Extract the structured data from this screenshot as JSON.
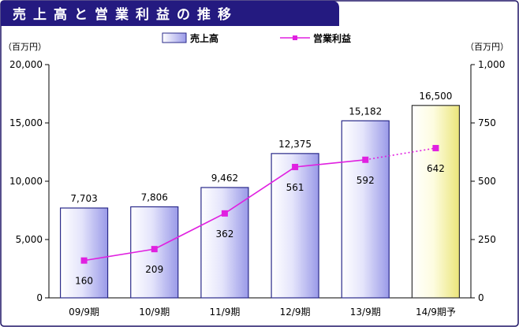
{
  "chart_data": {
    "type": "bar",
    "title": "売上高と営業利益の推移",
    "categories": [
      "09/9期",
      "10/9期",
      "11/9期",
      "12/9期",
      "13/9期",
      "14/9期予"
    ],
    "series": [
      {
        "name": "売上高",
        "type": "bar",
        "axis": "left",
        "values": [
          7703,
          7806,
          9462,
          12375,
          15182,
          16500
        ],
        "labels": [
          "7,703",
          "7,806",
          "9,462",
          "12,375",
          "15,182",
          "16,500"
        ],
        "forecast_index": 5,
        "color": "#2a2a8a",
        "forecast_color": "#e6e06a"
      },
      {
        "name": "営業利益",
        "type": "line",
        "axis": "right",
        "values": [
          160,
          209,
          362,
          561,
          592,
          642
        ],
        "labels": [
          "160",
          "209",
          "362",
          "561",
          "592",
          "642"
        ],
        "color": "#e020e0"
      }
    ],
    "left_axis": {
      "unit_label": "（百万円）",
      "ylim": [
        0,
        20000
      ],
      "ticks": [
        0,
        5000,
        10000,
        15000,
        20000
      ],
      "tick_labels": [
        "0",
        "5,000",
        "10,000",
        "15,000",
        "20,000"
      ]
    },
    "right_axis": {
      "unit_label": "（百万円）",
      "ylim": [
        0,
        1000
      ],
      "ticks": [
        0,
        250,
        500,
        750,
        1000
      ],
      "tick_labels": [
        "0",
        "250",
        "500",
        "750",
        "1,000"
      ]
    },
    "legend": {
      "position": "top-center"
    },
    "grid": false
  },
  "colors": {
    "title_bar": "#241a80",
    "frame": "#1e1466"
  }
}
